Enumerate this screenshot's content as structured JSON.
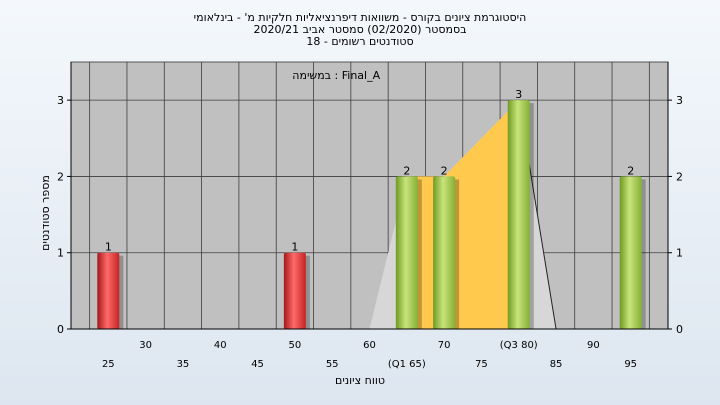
{
  "chart_data": {
    "type": "bar",
    "title_lines": [
      "היסטוגרמת ציונים בקורס - משוואות דיפרנציאליות חלקיות מ' - בינלאומי",
      "בסמסטר  (02/2020)  סמסטר אביב 2020/21",
      "סטודנטים רשומים - 18"
    ],
    "annotation": "במשימה : Final_A",
    "xlabel": "טווח ציונים",
    "ylabel": "מספר סטודנטים",
    "ylim": [
      0,
      3.5
    ],
    "y_ticks": [
      "0",
      "1",
      "2",
      "3"
    ],
    "x_ticks": [
      {
        "x": 25,
        "label": "25"
      },
      {
        "x": 30,
        "label": "30"
      },
      {
        "x": 35,
        "label": "35"
      },
      {
        "x": 40,
        "label": "40"
      },
      {
        "x": 45,
        "label": "45"
      },
      {
        "x": 50,
        "label": "50"
      },
      {
        "x": 55,
        "label": "55"
      },
      {
        "x": 60,
        "label": "60"
      },
      {
        "x": 65,
        "label": "(Q1 65)"
      },
      {
        "x": 70,
        "label": "70"
      },
      {
        "x": 75,
        "label": "75"
      },
      {
        "x": 80,
        "label": "(Q3 80)"
      },
      {
        "x": 85,
        "label": "85"
      },
      {
        "x": 90,
        "label": "90"
      },
      {
        "x": 95,
        "label": "95"
      }
    ],
    "bars": [
      {
        "x": 25,
        "value": 1,
        "label": "1",
        "color": "red"
      },
      {
        "x": 50,
        "value": 1,
        "label": "1",
        "color": "red"
      },
      {
        "x": 65,
        "value": 2,
        "label": "2",
        "color": "green"
      },
      {
        "x": 70,
        "value": 2,
        "label": "2",
        "color": "green"
      },
      {
        "x": 80,
        "value": 3,
        "label": "3",
        "color": "green"
      },
      {
        "x": 95,
        "value": 2,
        "label": "2",
        "color": "green"
      }
    ],
    "distribution_outline": [
      {
        "x": 60,
        "y": 0
      },
      {
        "x": 65,
        "y": 2
      },
      {
        "x": 70,
        "y": 2
      },
      {
        "x": 80,
        "y": 3
      },
      {
        "x": 85,
        "y": 0
      }
    ],
    "iqr_range": [
      65,
      80
    ],
    "grid": true,
    "colors": {
      "plot_bg": "#c0c0c0",
      "red_bar": "#e03a3a",
      "green_bar": "#9bc24a",
      "iqr_fill": "#ffc94d",
      "outline_fill": "#d7d7d7"
    }
  }
}
